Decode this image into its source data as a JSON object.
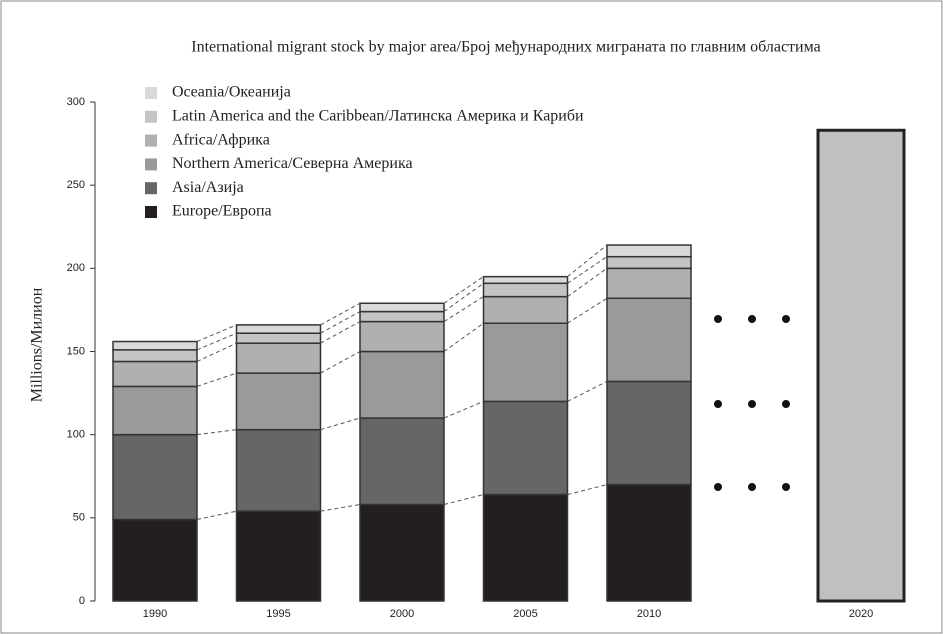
{
  "chart_data": {
    "type": "stacked-bar",
    "title": "International migrant stock by major area/Број међународних миграната по главним областима",
    "y_label": "Millions/Милион",
    "categories": [
      "1990",
      "1995",
      "2000",
      "2005",
      "2010"
    ],
    "series": [
      {
        "name": "Europe/Европа",
        "color": "#231f20",
        "values": [
          49,
          54,
          58,
          64,
          70
        ]
      },
      {
        "name": "Asia/Азија",
        "color": "#666666",
        "values": [
          51,
          49,
          52,
          56,
          62
        ]
      },
      {
        "name": "Northern America/Северна Америка",
        "color": "#9a9a9a",
        "values": [
          29,
          34,
          40,
          47,
          50
        ]
      },
      {
        "name": "Africa/Африка",
        "color": "#b0b0b0",
        "values": [
          15,
          18,
          18,
          16,
          18
        ]
      },
      {
        "name": "Latin America and the Caribbean/Латинска Америка и Кариби",
        "color": "#c4c4c4",
        "values": [
          7,
          6,
          6,
          8,
          7
        ]
      },
      {
        "name": "Oceania/Океанија",
        "color": "#d9d9d9",
        "values": [
          5,
          5,
          5,
          4,
          7
        ]
      }
    ],
    "projection": {
      "category": "2020",
      "value": 283,
      "color": "#c0c0c0"
    },
    "ylim": [
      0,
      300
    ],
    "yticks": [
      0,
      50,
      100,
      150,
      200,
      250,
      300
    ]
  }
}
